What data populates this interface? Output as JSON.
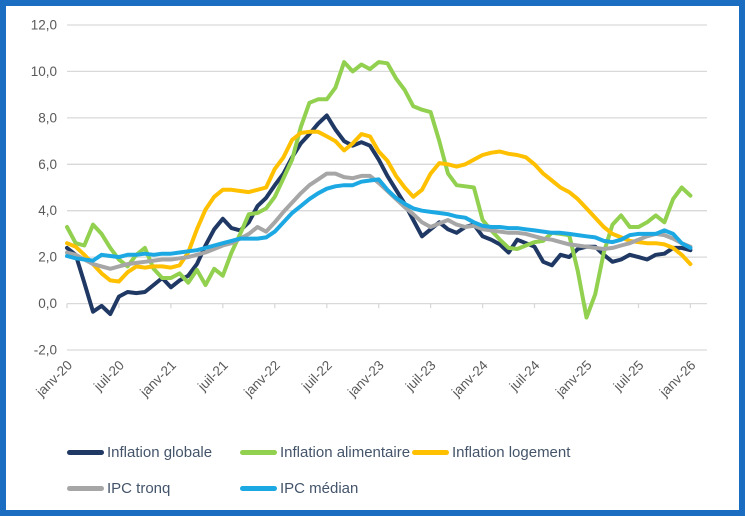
{
  "page": {
    "border_color": "#1b6dc1",
    "background_color": "#ffffff",
    "grid_color": "#d9d9d9",
    "axis_label_color": "#595959",
    "legend_text_color": "#44546a"
  },
  "chart_data": {
    "type": "line",
    "title": "",
    "xlabel": "",
    "ylabel": "",
    "ylim": [
      -2,
      12
    ],
    "grid": true,
    "legend_position": "bottom",
    "y_ticks": [
      {
        "value": 12,
        "label": "12,0"
      },
      {
        "value": 10,
        "label": "10,0"
      },
      {
        "value": 8,
        "label": "8,0"
      },
      {
        "value": 6,
        "label": "6,0"
      },
      {
        "value": 4,
        "label": "4,0"
      },
      {
        "value": 2,
        "label": "2,0"
      },
      {
        "value": 0,
        "label": "0,0"
      },
      {
        "value": -2,
        "label": "-2,0"
      }
    ],
    "x_tick_positions": [
      0,
      6,
      12,
      18,
      24,
      30,
      36,
      42,
      48,
      54,
      60,
      66,
      72
    ],
    "x_tick_labels": [
      "janv-20",
      "juil-20",
      "janv-21",
      "juil-21",
      "janv-22",
      "juil-22",
      "janv-23",
      "juil-23",
      "janv-24",
      "juil-24",
      "janv-25",
      "juil-25",
      "janv-26"
    ],
    "months": [
      "janv-20",
      "févr-20",
      "mars-20",
      "avr-20",
      "mai-20",
      "juin-20",
      "juil-20",
      "août-20",
      "sept-20",
      "oct-20",
      "nov-20",
      "déc-20",
      "janv-21",
      "févr-21",
      "mars-21",
      "avr-21",
      "mai-21",
      "juin-21",
      "juil-21",
      "août-21",
      "sept-21",
      "oct-21",
      "nov-21",
      "déc-21",
      "janv-22",
      "févr-22",
      "mars-22",
      "avr-22",
      "mai-22",
      "juin-22",
      "juil-22",
      "août-22",
      "sept-22",
      "oct-22",
      "nov-22",
      "déc-22",
      "janv-23",
      "févr-23",
      "mars-23",
      "avr-23",
      "mai-23",
      "juin-23",
      "juil-23",
      "août-23",
      "sept-23",
      "oct-23",
      "nov-23",
      "déc-23",
      "janv-24",
      "févr-24",
      "mars-24",
      "avr-24",
      "mai-24",
      "juin-24",
      "juil-24",
      "août-24",
      "sept-24",
      "oct-24",
      "nov-24",
      "déc-24",
      "janv-25",
      "févr-25",
      "mars-25",
      "avr-25",
      "mai-25",
      "juin-25",
      "juil-25",
      "août-25",
      "sept-25",
      "oct-25",
      "nov-25",
      "déc-25",
      "janv-26"
    ],
    "series": [
      {
        "name": "Inflation globale",
        "color": "#1f3864",
        "values": [
          2.4,
          2.1,
          0.9,
          -0.35,
          -0.1,
          -0.45,
          0.3,
          0.5,
          0.45,
          0.5,
          0.8,
          1.1,
          0.7,
          1.0,
          1.2,
          1.7,
          2.5,
          3.2,
          3.65,
          3.25,
          3.15,
          3.5,
          4.2,
          4.55,
          5.1,
          5.6,
          6.3,
          6.9,
          7.3,
          7.75,
          8.1,
          7.5,
          7.0,
          6.8,
          6.95,
          6.8,
          6.2,
          5.5,
          4.9,
          4.3,
          3.6,
          2.9,
          3.2,
          3.5,
          3.2,
          3.05,
          3.3,
          3.4,
          2.9,
          2.75,
          2.55,
          2.2,
          2.75,
          2.6,
          2.45,
          1.8,
          1.65,
          2.1,
          2.0,
          2.35,
          2.45,
          2.45,
          2.1,
          1.8,
          1.9,
          2.1,
          2.0,
          1.9,
          2.1,
          2.15,
          2.4,
          2.4,
          2.3
        ]
      },
      {
        "name": "Inflation alimentaire",
        "color": "#92d050",
        "values": [
          3.3,
          2.6,
          2.5,
          3.4,
          3.0,
          2.4,
          1.9,
          1.6,
          2.1,
          2.4,
          1.5,
          1.1,
          1.1,
          1.3,
          0.9,
          1.45,
          0.8,
          1.5,
          1.2,
          2.2,
          3.0,
          3.85,
          3.9,
          4.1,
          4.6,
          5.4,
          6.2,
          7.6,
          8.65,
          8.8,
          8.8,
          9.3,
          10.4,
          10.0,
          10.3,
          10.1,
          10.4,
          10.35,
          9.7,
          9.2,
          8.5,
          8.35,
          8.25,
          7.0,
          5.6,
          5.1,
          5.05,
          5.0,
          3.6,
          3.15,
          2.75,
          2.4,
          2.35,
          2.5,
          2.65,
          2.7,
          3.05,
          3.0,
          2.95,
          1.4,
          -0.6,
          0.4,
          2.2,
          3.4,
          3.8,
          3.3,
          3.3,
          3.5,
          3.8,
          3.5,
          4.5,
          5.0,
          4.65
        ]
      },
      {
        "name": "Inflation logement",
        "color": "#ffc000",
        "values": [
          2.6,
          2.45,
          2.1,
          1.7,
          1.3,
          1.0,
          0.95,
          1.35,
          1.6,
          1.55,
          1.6,
          1.6,
          1.55,
          1.65,
          2.2,
          3.2,
          4.05,
          4.6,
          4.9,
          4.9,
          4.85,
          4.8,
          4.9,
          5.0,
          5.8,
          6.3,
          7.05,
          7.35,
          7.4,
          7.4,
          7.2,
          7.0,
          6.6,
          6.9,
          7.3,
          7.2,
          6.55,
          6.15,
          5.5,
          5.0,
          4.6,
          4.9,
          5.6,
          6.05,
          6.0,
          5.9,
          6.0,
          6.2,
          6.4,
          6.5,
          6.55,
          6.45,
          6.4,
          6.3,
          6.0,
          5.6,
          5.3,
          5.0,
          4.8,
          4.5,
          4.1,
          3.7,
          3.3,
          3.0,
          2.85,
          2.7,
          2.65,
          2.6,
          2.6,
          2.55,
          2.4,
          2.1,
          1.7
        ]
      },
      {
        "name": "IPC tronq",
        "color": "#a6a6a6",
        "values": [
          2.2,
          2.1,
          1.9,
          1.7,
          1.6,
          1.5,
          1.6,
          1.7,
          1.75,
          1.8,
          1.85,
          1.9,
          1.9,
          1.95,
          2.0,
          2.1,
          2.2,
          2.35,
          2.5,
          2.6,
          2.8,
          3.0,
          3.3,
          3.1,
          3.5,
          3.95,
          4.35,
          4.75,
          5.1,
          5.35,
          5.6,
          5.6,
          5.45,
          5.4,
          5.5,
          5.5,
          5.2,
          4.85,
          4.5,
          4.15,
          3.85,
          3.5,
          3.3,
          3.45,
          3.6,
          3.4,
          3.3,
          3.35,
          3.2,
          3.15,
          3.1,
          3.05,
          3.05,
          3.0,
          2.9,
          2.8,
          2.75,
          2.65,
          2.55,
          2.5,
          2.45,
          2.4,
          2.35,
          2.4,
          2.5,
          2.6,
          2.75,
          2.9,
          3.0,
          2.95,
          2.8,
          2.6,
          2.45
        ]
      },
      {
        "name": "IPC médian",
        "color": "#1ca8e3",
        "values": [
          2.05,
          1.95,
          1.9,
          1.85,
          2.1,
          2.05,
          2.0,
          2.1,
          2.1,
          2.15,
          2.1,
          2.15,
          2.15,
          2.2,
          2.25,
          2.3,
          2.4,
          2.5,
          2.6,
          2.7,
          2.8,
          2.8,
          2.8,
          2.85,
          3.1,
          3.5,
          3.9,
          4.2,
          4.5,
          4.75,
          4.95,
          5.05,
          5.1,
          5.1,
          5.25,
          5.3,
          5.35,
          4.9,
          4.55,
          4.3,
          4.1,
          4.0,
          3.95,
          3.9,
          3.85,
          3.75,
          3.7,
          3.5,
          3.35,
          3.3,
          3.3,
          3.25,
          3.25,
          3.2,
          3.15,
          3.1,
          3.05,
          3.05,
          3.0,
          2.95,
          2.9,
          2.85,
          2.7,
          2.65,
          2.75,
          2.95,
          3.0,
          3.0,
          3.0,
          3.15,
          3.0,
          2.6,
          2.4
        ]
      }
    ]
  }
}
